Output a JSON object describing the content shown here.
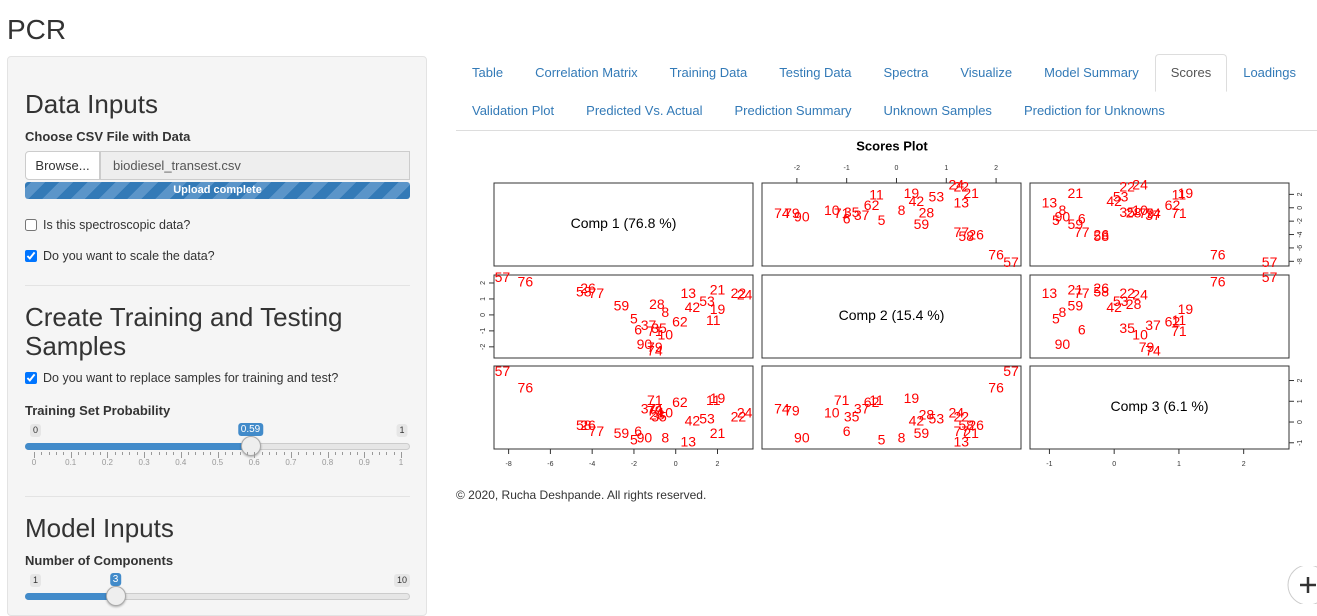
{
  "header": {
    "title": "PCR"
  },
  "sidebar": {
    "data_inputs": {
      "heading": "Data Inputs",
      "file_label": "Choose CSV File with Data",
      "browse": "Browse...",
      "file_name": "biodiesel_transest.csv",
      "progress": "Upload complete",
      "spectroscopic": {
        "label": "Is this spectroscopic data?",
        "checked": false
      },
      "scale": {
        "label": "Do you want to scale the data?",
        "checked": true
      }
    },
    "samples_section": {
      "heading": "Create Training and Testing Samples",
      "replace": {
        "label": "Do you want to replace samples for training and test?",
        "checked": true
      },
      "slider": {
        "label": "Training Set Probability",
        "min": 0,
        "max": 1,
        "value": 0.59,
        "ticks": [
          0,
          0.1,
          0.2,
          0.3,
          0.4,
          0.5,
          0.6,
          0.7,
          0.8,
          0.9,
          1
        ]
      }
    },
    "model_inputs": {
      "heading": "Model Inputs",
      "slider": {
        "label": "Number of Components",
        "min": 1,
        "max": 10,
        "value": 3
      }
    }
  },
  "tabs": {
    "items": [
      "Table",
      "Correlation Matrix",
      "Training Data",
      "Testing Data",
      "Spectra",
      "Visualize",
      "Model Summary",
      "Scores",
      "Loadings",
      "Validation Plot",
      "Predicted Vs. Actual",
      "Prediction Summary",
      "Unknown Samples",
      "Prediction for Unknowns"
    ],
    "active": 7
  },
  "plot": {
    "title": "Scores Plot",
    "diag_labels": [
      "Comp 1 (76.8 %)",
      "Comp 2 (15.4 %)",
      "Comp 3 (6.1 %)"
    ],
    "color": "#ff0000",
    "axes": [
      {
        "lim": [
          -8.7,
          3.7
        ],
        "ticks": [
          -8,
          -6,
          -4,
          -2,
          0,
          2
        ]
      },
      {
        "lim": [
          -2.7,
          2.5
        ],
        "ticks": [
          -2,
          -1,
          0,
          1,
          2
        ]
      },
      {
        "lim": [
          -1.3,
          2.7
        ],
        "ticks": [
          -1,
          0,
          1,
          2
        ]
      }
    ],
    "samples": [
      {
        "label": "57",
        "scores": [
          -8.3,
          2.3,
          2.4
        ]
      },
      {
        "label": "76",
        "scores": [
          -7.2,
          2.0,
          1.6
        ]
      },
      {
        "label": "26",
        "scores": [
          -4.2,
          1.6,
          -0.2
        ]
      },
      {
        "label": "58",
        "scores": [
          -4.4,
          1.4,
          -0.2
        ]
      },
      {
        "label": "77",
        "scores": [
          -3.8,
          1.3,
          -0.5
        ]
      },
      {
        "label": "13",
        "scores": [
          0.6,
          1.3,
          -1.0
        ]
      },
      {
        "label": "21",
        "scores": [
          2.0,
          1.5,
          -0.6
        ]
      },
      {
        "label": "22",
        "scores": [
          3.0,
          1.3,
          0.2
        ]
      },
      {
        "label": "24",
        "scores": [
          3.3,
          1.2,
          0.4
        ]
      },
      {
        "label": "19",
        "scores": [
          2.0,
          0.3,
          1.1
        ]
      },
      {
        "label": "11",
        "scores": [
          1.8,
          -0.4,
          1.0
        ]
      },
      {
        "label": "74",
        "scores": [
          -1.0,
          -2.3,
          0.6
        ]
      },
      {
        "label": "79",
        "scores": [
          -1.0,
          -2.1,
          0.5
        ]
      },
      {
        "label": "59",
        "scores": [
          -2.6,
          0.5,
          -0.6
        ]
      },
      {
        "label": "28",
        "scores": [
          -0.9,
          0.6,
          0.3
        ]
      },
      {
        "label": "37",
        "scores": [
          -1.3,
          -0.7,
          0.6
        ]
      },
      {
        "label": "42",
        "scores": [
          0.8,
          0.4,
          0.0
        ]
      },
      {
        "label": "10",
        "scores": [
          -0.5,
          -1.3,
          0.4
        ]
      },
      {
        "label": "90",
        "scores": [
          -1.5,
          -1.9,
          -0.8
        ]
      },
      {
        "label": "71",
        "scores": [
          -1.0,
          -1.1,
          1.0
        ]
      },
      {
        "label": "35",
        "scores": [
          -0.8,
          -0.9,
          0.2
        ]
      },
      {
        "label": "53",
        "scores": [
          1.5,
          0.8,
          0.1
        ]
      },
      {
        "label": "5",
        "scores": [
          -2.0,
          -0.3,
          -0.9
        ]
      },
      {
        "label": "8",
        "scores": [
          -0.5,
          0.1,
          -0.8
        ]
      },
      {
        "label": "6",
        "scores": [
          -1.8,
          -1.0,
          -0.5
        ]
      },
      {
        "label": "62",
        "scores": [
          0.2,
          -0.5,
          0.9
        ]
      }
    ]
  },
  "footer": {
    "text": "© 2020, Rucha Deshpande. All rights reserved."
  }
}
